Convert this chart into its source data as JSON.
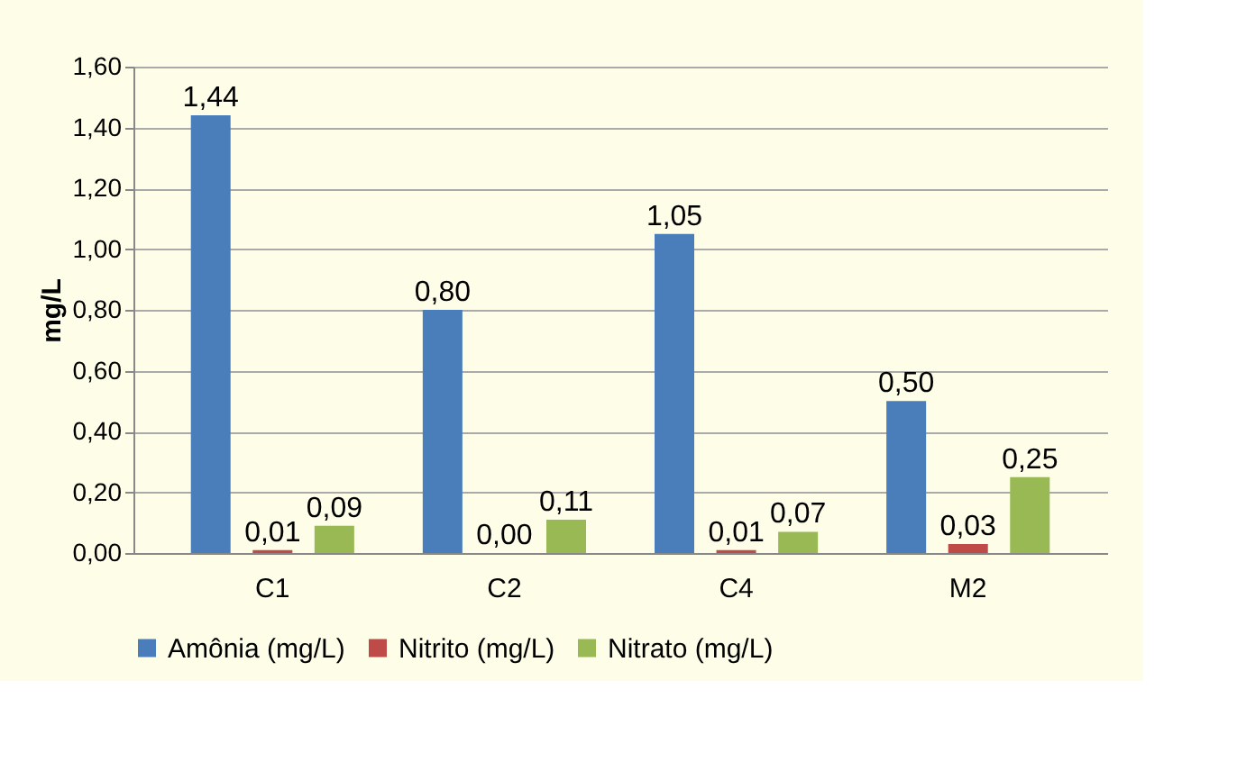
{
  "chart_data": {
    "type": "bar",
    "ylabel": "mg/L",
    "categories": [
      "C1",
      "C2",
      "C4",
      "M2"
    ],
    "series": [
      {
        "name": "Amônia (mg/L)",
        "color": "#4a7ebb",
        "values": [
          1.44,
          0.8,
          1.05,
          0.5
        ],
        "value_labels": [
          "1,44",
          "0,80",
          "1,05",
          "0,50"
        ]
      },
      {
        "name": "Nitrito (mg/L)",
        "color": "#be4b48",
        "values": [
          0.01,
          0.0,
          0.01,
          0.03
        ],
        "value_labels": [
          "0,01",
          "0,00",
          "0,01",
          "0,03"
        ]
      },
      {
        "name": "Nitrato (mg/L)",
        "color": "#98b954",
        "values": [
          0.09,
          0.11,
          0.07,
          0.25
        ],
        "value_labels": [
          "0,09",
          "0,11",
          "0,07",
          "0,25"
        ]
      }
    ],
    "ylim": [
      0,
      1.6
    ],
    "yticks": [
      {
        "value": 0,
        "label": "0,00"
      },
      {
        "value": 0.2,
        "label": "0,20"
      },
      {
        "value": 0.4,
        "label": "0,40"
      },
      {
        "value": 0.6,
        "label": "0,60"
      },
      {
        "value": 0.8,
        "label": "0,80"
      },
      {
        "value": 1.0,
        "label": "1,00"
      },
      {
        "value": 1.2,
        "label": "1,20"
      },
      {
        "value": 1.4,
        "label": "1,40"
      },
      {
        "value": 1.6,
        "label": "1,60"
      }
    ],
    "grid": "y",
    "legend": "bottom"
  }
}
